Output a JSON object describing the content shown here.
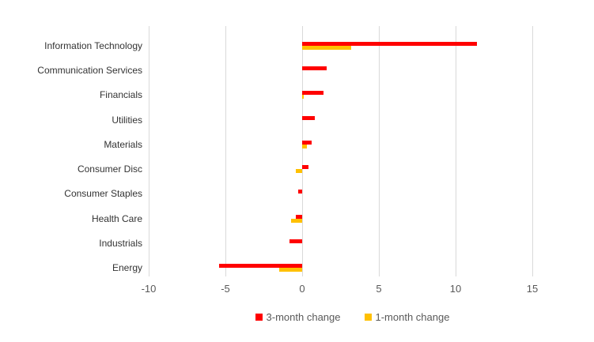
{
  "chart_data": {
    "type": "bar",
    "orientation": "horizontal",
    "title": "",
    "xlabel": "",
    "ylabel": "",
    "categories": [
      "Information Technology",
      "Communication Services",
      "Financials",
      "Utilities",
      "Materials",
      "Consumer Disc",
      "Consumer Staples",
      "Health Care",
      "Industrials",
      "Energy"
    ],
    "series": [
      {
        "name": "3-month change",
        "color": "#ff0000",
        "values": [
          11.4,
          1.6,
          1.4,
          0.8,
          0.6,
          0.4,
          -0.25,
          -0.4,
          -0.85,
          -5.4
        ]
      },
      {
        "name": "1-month change",
        "color": "#ffc000",
        "values": [
          3.2,
          0.0,
          0.1,
          0.0,
          0.3,
          -0.4,
          0.0,
          -0.7,
          0.0,
          -1.5
        ]
      }
    ],
    "x_ticks": [
      -10,
      -5,
      0,
      5,
      10,
      15
    ],
    "x_tick_labels": [
      "-10",
      "-5",
      "0",
      "5",
      "10",
      "15"
    ],
    "xlim": [
      -10,
      16.5
    ],
    "grid": "vertical",
    "gridline_color": "#d9d9d9",
    "background_color": "#ffffff",
    "axis_text_color": "#595959",
    "category_text_color": "#333333",
    "legend_position": "bottom"
  }
}
